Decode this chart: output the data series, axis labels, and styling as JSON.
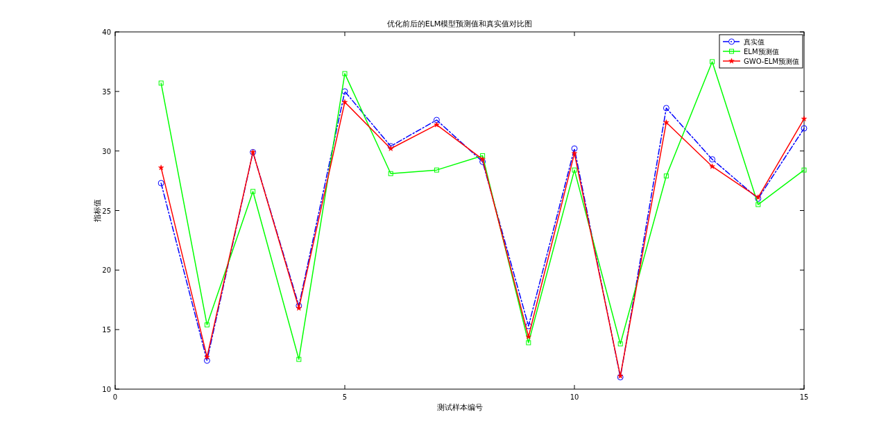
{
  "chart_data": {
    "type": "line",
    "title": "优化前后的ELM模型预测值和真实值对比图",
    "xlabel": "测试样本编号",
    "ylabel": "指标值",
    "x": [
      1,
      2,
      3,
      4,
      5,
      6,
      7,
      8,
      9,
      10,
      11,
      12,
      13,
      14,
      15
    ],
    "xlim": [
      0,
      15
    ],
    "xticks": [
      0,
      5,
      10,
      15
    ],
    "ylim": [
      10,
      40
    ],
    "yticks": [
      10,
      15,
      20,
      25,
      30,
      35,
      40
    ],
    "grid": false,
    "legend": "top right",
    "series": [
      {
        "name": "真实值",
        "color": "#0000ff",
        "marker": "circle",
        "line_style": "dashdot",
        "values": [
          27.3,
          12.4,
          29.9,
          17.0,
          35.0,
          30.4,
          32.6,
          29.1,
          15.3,
          30.2,
          11.0,
          33.6,
          29.3,
          26.0,
          31.9
        ]
      },
      {
        "name": "ELM预测值",
        "color": "#00ff00",
        "marker": "square",
        "line_style": "solid",
        "values": [
          35.7,
          15.4,
          26.6,
          12.5,
          36.5,
          28.1,
          28.4,
          29.6,
          13.9,
          28.4,
          13.8,
          27.9,
          37.5,
          25.5,
          28.4
        ]
      },
      {
        "name": "GWO-ELM预测值",
        "color": "#ff0000",
        "marker": "star",
        "line_style": "solid",
        "values": [
          28.6,
          12.7,
          29.9,
          16.8,
          34.1,
          30.2,
          32.2,
          29.3,
          14.4,
          29.8,
          11.1,
          32.4,
          28.7,
          26.1,
          32.7
        ]
      }
    ]
  }
}
